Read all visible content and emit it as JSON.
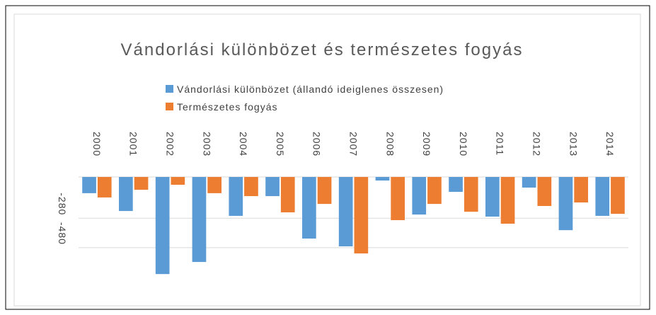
{
  "chart_data": {
    "type": "bar",
    "title": "Vándorlási különbözet és természetes fogyás",
    "categories": [
      "2000",
      "2001",
      "2002",
      "2003",
      "2004",
      "2005",
      "2006",
      "2007",
      "2008",
      "2009",
      "2010",
      "2011",
      "2012",
      "2013",
      "2014"
    ],
    "series": [
      {
        "name": "Vándorlási különbözet (állandó ideiglenes összesen)",
        "color": "#5b9bd5",
        "values": [
          -110,
          -231,
          -659,
          -577,
          -264,
          -130,
          -418,
          -471,
          -24,
          -255,
          -101,
          -269,
          -72,
          -361,
          -264
        ]
      },
      {
        "name": "Természetes fogyás",
        "color": "#ed7d31",
        "values": [
          -139,
          -87,
          -53,
          -110,
          -130,
          -240,
          -183,
          -519,
          -293,
          -183,
          -236,
          -317,
          -197,
          -173,
          -250
        ]
      }
    ],
    "ylim": [
      -860,
      0
    ],
    "yticks": [
      -280,
      -480
    ],
    "grid": true
  }
}
